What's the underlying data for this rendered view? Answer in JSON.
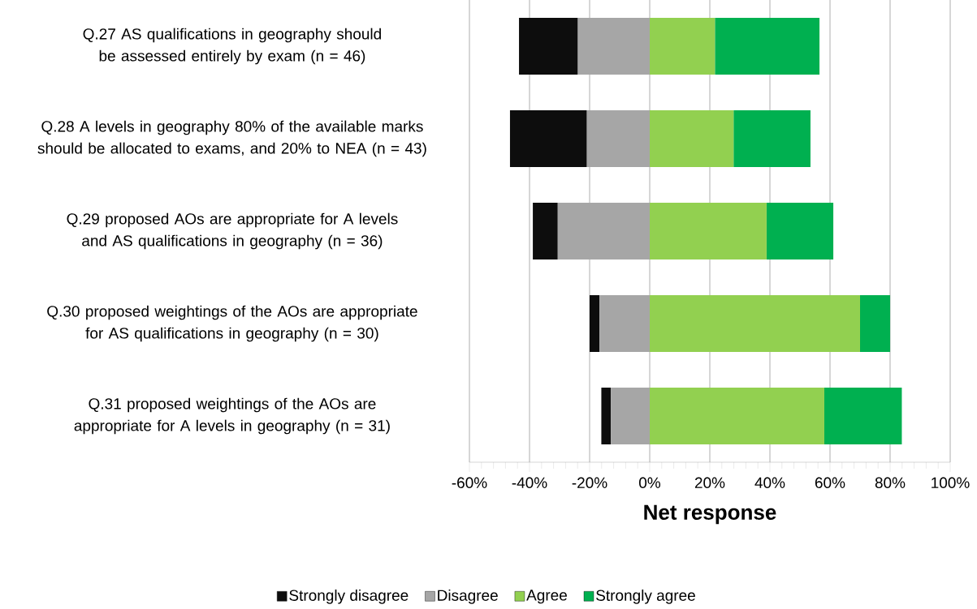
{
  "chart_data": {
    "type": "bar",
    "orientation": "horizontal",
    "stacked": true,
    "xlabel": "Net response",
    "categories": [
      "Q.27 AS qualifications in geography should be assessed entirely by exam (n = 46)",
      "Q.28 A levels in geography 80% of the available marks should be allocated to exams, and 20% to NEA (n = 43)",
      "Q.29 proposed AOs are appropriate for A levels and AS qualifications in geography (n = 36)",
      "Q.30 proposed weightings of the AOs are appropriate for AS qualifications in geography (n = 30)",
      "Q.31 proposed weightings of the AOs are appropriate for A levels in geography (n = 31)"
    ],
    "series": [
      {
        "name": "Strongly disagree",
        "color": "#0d0d0d",
        "values": [
          -19.6,
          -25.6,
          -8.3,
          -3.3,
          -3.2
        ]
      },
      {
        "name": "Disagree",
        "color": "#a6a6a6",
        "values": [
          -23.9,
          -20.9,
          -30.6,
          -16.7,
          -12.9
        ]
      },
      {
        "name": "Agree",
        "color": "#92d050",
        "values": [
          21.7,
          27.9,
          38.9,
          70.0,
          58.1
        ]
      },
      {
        "name": "Strongly agree",
        "color": "#00b050",
        "values": [
          34.8,
          25.6,
          22.2,
          10.0,
          25.8
        ]
      }
    ],
    "xlim": [
      -60,
      100
    ],
    "xticks": [
      {
        "value": -60,
        "label": "-60%"
      },
      {
        "value": -40,
        "label": "-40%"
      },
      {
        "value": -20,
        "label": "-20%"
      },
      {
        "value": 0,
        "label": "0%"
      },
      {
        "value": 20,
        "label": "20%"
      },
      {
        "value": 40,
        "label": "40%"
      },
      {
        "value": 60,
        "label": "60%"
      },
      {
        "value": 80,
        "label": "80%"
      },
      {
        "value": 100,
        "label": "100%"
      }
    ],
    "grid": "x",
    "legend": "bottom"
  }
}
